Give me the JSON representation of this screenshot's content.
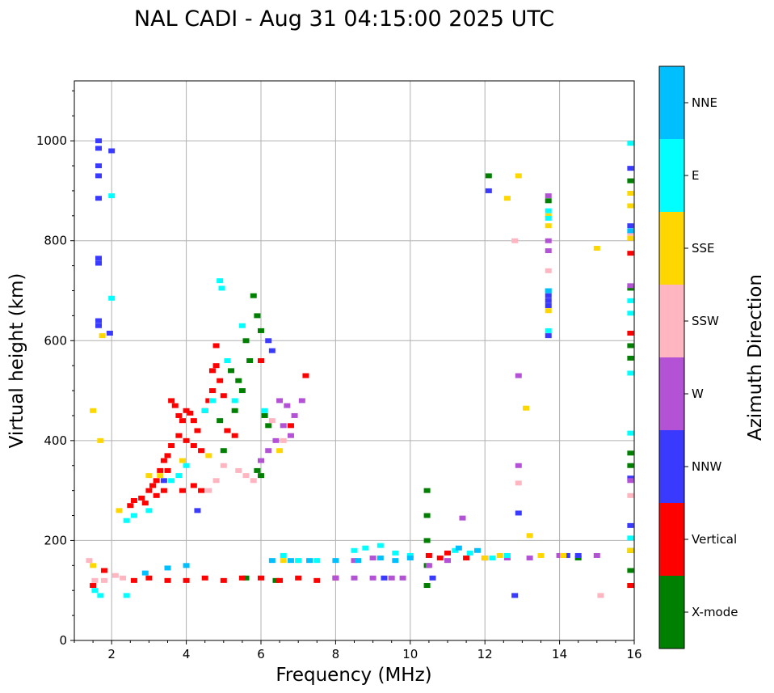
{
  "chart_data": {
    "type": "scatter",
    "title": "NAL CADI - Aug 31 04:15:00 2025 UTC",
    "xlabel": "Frequency (MHz)",
    "ylabel": "Virtual height (km)",
    "xlim": [
      1,
      16
    ],
    "ylim": [
      0,
      1120
    ],
    "xticks": [
      "2",
      "4",
      "6",
      "8",
      "10",
      "12",
      "14",
      "16"
    ],
    "yticks": [
      "0",
      "200",
      "400",
      "600",
      "800",
      "1000"
    ],
    "grid": true,
    "colorbar": {
      "label": "Azimuth Direction",
      "categories": [
        {
          "name": "X-mode",
          "color": "#008000"
        },
        {
          "name": "Vertical",
          "color": "#ff0000"
        },
        {
          "name": "NNW",
          "color": "#3a3aff"
        },
        {
          "name": "W",
          "color": "#b452d6"
        },
        {
          "name": "SSW",
          "color": "#ffb6c1"
        },
        {
          "name": "SSE",
          "color": "#ffd700"
        },
        {
          "name": "E",
          "color": "#00ffff"
        },
        {
          "name": "NNE",
          "color": "#00bfff"
        }
      ]
    },
    "series": [
      {
        "name": "X-mode",
        "points": [
          [
            5.2,
            540
          ],
          [
            5.4,
            520
          ],
          [
            5.6,
            600
          ],
          [
            5.8,
            690
          ],
          [
            5.9,
            650
          ],
          [
            6.0,
            620
          ],
          [
            5.7,
            560
          ],
          [
            5.5,
            500
          ],
          [
            5.3,
            460
          ],
          [
            5.1,
            420
          ],
          [
            4.9,
            440
          ],
          [
            5.0,
            380
          ],
          [
            6.1,
            450
          ],
          [
            6.2,
            430
          ],
          [
            5.9,
            340
          ],
          [
            6.0,
            330
          ],
          [
            10.45,
            300
          ],
          [
            10.45,
            250
          ],
          [
            10.45,
            200
          ],
          [
            10.45,
            150
          ],
          [
            10.45,
            110
          ],
          [
            14.5,
            165
          ],
          [
            15.9,
            375
          ],
          [
            15.9,
            350
          ],
          [
            15.9,
            180
          ],
          [
            15.9,
            140
          ],
          [
            15.9,
            110
          ],
          [
            15.9,
            565
          ],
          [
            15.9,
            590
          ],
          [
            15.9,
            705
          ],
          [
            15.9,
            920
          ],
          [
            5.6,
            125
          ],
          [
            6.4,
            120
          ],
          [
            12.1,
            930
          ],
          [
            13.7,
            880
          ]
        ]
      },
      {
        "name": "Vertical",
        "points": [
          [
            2.5,
            270
          ],
          [
            2.6,
            280
          ],
          [
            2.8,
            285
          ],
          [
            3.0,
            300
          ],
          [
            3.2,
            320
          ],
          [
            3.3,
            340
          ],
          [
            3.4,
            360
          ],
          [
            3.5,
            370
          ],
          [
            3.6,
            390
          ],
          [
            3.6,
            480
          ],
          [
            3.7,
            470
          ],
          [
            3.8,
            450
          ],
          [
            3.9,
            440
          ],
          [
            4.0,
            460
          ],
          [
            4.1,
            455
          ],
          [
            4.2,
            440
          ],
          [
            4.0,
            400
          ],
          [
            3.8,
            410
          ],
          [
            4.2,
            390
          ],
          [
            4.4,
            380
          ],
          [
            4.3,
            420
          ],
          [
            4.5,
            460
          ],
          [
            4.6,
            480
          ],
          [
            4.7,
            540
          ],
          [
            4.8,
            550
          ],
          [
            4.9,
            520
          ],
          [
            4.7,
            500
          ],
          [
            5.0,
            490
          ],
          [
            4.4,
            300
          ],
          [
            4.2,
            310
          ],
          [
            3.9,
            300
          ],
          [
            3.5,
            340
          ],
          [
            3.4,
            300
          ],
          [
            3.2,
            290
          ],
          [
            2.9,
            275
          ],
          [
            3.1,
            310
          ],
          [
            4.8,
            590
          ],
          [
            5.1,
            420
          ],
          [
            5.3,
            410
          ],
          [
            6.0,
            560
          ],
          [
            7.2,
            530
          ],
          [
            6.8,
            430
          ],
          [
            2.6,
            120
          ],
          [
            3.0,
            125
          ],
          [
            3.5,
            120
          ],
          [
            4.0,
            120
          ],
          [
            4.5,
            125
          ],
          [
            5.0,
            120
          ],
          [
            5.5,
            125
          ],
          [
            6.0,
            125
          ],
          [
            6.5,
            120
          ],
          [
            7.0,
            125
          ],
          [
            7.5,
            120
          ],
          [
            8.0,
            125
          ],
          [
            10.5,
            170
          ],
          [
            10.8,
            165
          ],
          [
            11.0,
            175
          ],
          [
            11.5,
            165
          ],
          [
            12.0,
            165
          ],
          [
            15.9,
            775
          ],
          [
            15.9,
            615
          ],
          [
            15.9,
            110
          ],
          [
            1.5,
            110
          ],
          [
            1.8,
            140
          ]
        ]
      },
      {
        "name": "NNW",
        "points": [
          [
            1.65,
            1000
          ],
          [
            1.65,
            985
          ],
          [
            1.65,
            950
          ],
          [
            1.65,
            930
          ],
          [
            1.65,
            885
          ],
          [
            1.65,
            765
          ],
          [
            1.65,
            755
          ],
          [
            1.65,
            640
          ],
          [
            1.65,
            630
          ],
          [
            1.95,
            615
          ],
          [
            13.7,
            690
          ],
          [
            13.7,
            680
          ],
          [
            13.7,
            670
          ],
          [
            13.7,
            610
          ],
          [
            12.1,
            900
          ],
          [
            12.8,
            90
          ],
          [
            12.9,
            255
          ],
          [
            14.5,
            170
          ],
          [
            14.2,
            170
          ],
          [
            10.6,
            125
          ],
          [
            9.3,
            125
          ],
          [
            15.9,
            945
          ],
          [
            15.9,
            830
          ],
          [
            15.9,
            325
          ],
          [
            15.9,
            230
          ],
          [
            6.3,
            580
          ],
          [
            6.2,
            600
          ],
          [
            2.0,
            980
          ],
          [
            3.4,
            320
          ],
          [
            4.3,
            260
          ]
        ]
      },
      {
        "name": "W",
        "points": [
          [
            8.0,
            125
          ],
          [
            8.5,
            125
          ],
          [
            9.0,
            125
          ],
          [
            9.5,
            125
          ],
          [
            9.8,
            125
          ],
          [
            8.5,
            160
          ],
          [
            9.0,
            165
          ],
          [
            10.5,
            150
          ],
          [
            11.0,
            160
          ],
          [
            12.0,
            165
          ],
          [
            12.6,
            165
          ],
          [
            13.2,
            165
          ],
          [
            13.7,
            890
          ],
          [
            13.7,
            800
          ],
          [
            13.7,
            780
          ],
          [
            12.9,
            530
          ],
          [
            12.9,
            350
          ],
          [
            15.9,
            710
          ],
          [
            15.9,
            320
          ],
          [
            6.5,
            480
          ],
          [
            6.7,
            470
          ],
          [
            6.9,
            450
          ],
          [
            7.1,
            480
          ],
          [
            6.6,
            430
          ],
          [
            6.8,
            410
          ],
          [
            6.4,
            400
          ],
          [
            6.2,
            380
          ],
          [
            6.0,
            360
          ],
          [
            11.4,
            245
          ],
          [
            14.0,
            170
          ],
          [
            15.0,
            170
          ]
        ]
      },
      {
        "name": "SSW",
        "points": [
          [
            1.4,
            160
          ],
          [
            1.55,
            120
          ],
          [
            1.8,
            120
          ],
          [
            2.1,
            130
          ],
          [
            2.3,
            125
          ],
          [
            5.4,
            340
          ],
          [
            5.6,
            330
          ],
          [
            5.8,
            320
          ],
          [
            5.0,
            350
          ],
          [
            4.8,
            320
          ],
          [
            4.6,
            300
          ],
          [
            12.9,
            315
          ],
          [
            12.8,
            800
          ],
          [
            13.7,
            740
          ],
          [
            15.9,
            815
          ],
          [
            15.9,
            290
          ],
          [
            15.1,
            90
          ],
          [
            6.3,
            440
          ],
          [
            6.6,
            400
          ]
        ]
      },
      {
        "name": "SSE",
        "points": [
          [
            1.5,
            460
          ],
          [
            1.7,
            400
          ],
          [
            1.75,
            610
          ],
          [
            1.5,
            150
          ],
          [
            2.2,
            260
          ],
          [
            3.0,
            330
          ],
          [
            3.3,
            330
          ],
          [
            3.9,
            360
          ],
          [
            4.6,
            370
          ],
          [
            6.5,
            380
          ],
          [
            6.6,
            160
          ],
          [
            7.0,
            160
          ],
          [
            12.0,
            165
          ],
          [
            12.4,
            170
          ],
          [
            12.6,
            885
          ],
          [
            12.9,
            930
          ],
          [
            13.1,
            465
          ],
          [
            13.2,
            210
          ],
          [
            13.5,
            170
          ],
          [
            13.7,
            830
          ],
          [
            13.7,
            850
          ],
          [
            13.7,
            660
          ],
          [
            14.1,
            170
          ],
          [
            15.0,
            785
          ],
          [
            15.9,
            895
          ],
          [
            15.9,
            870
          ],
          [
            15.9,
            805
          ],
          [
            15.9,
            180
          ]
        ]
      },
      {
        "name": "E",
        "points": [
          [
            1.55,
            100
          ],
          [
            1.7,
            90
          ],
          [
            2.4,
            90
          ],
          [
            2.0,
            890
          ],
          [
            2.0,
            685
          ],
          [
            4.9,
            720
          ],
          [
            4.95,
            705
          ],
          [
            5.5,
            630
          ],
          [
            5.1,
            560
          ],
          [
            4.7,
            480
          ],
          [
            4.5,
            460
          ],
          [
            4.0,
            350
          ],
          [
            3.8,
            330
          ],
          [
            3.6,
            320
          ],
          [
            3.0,
            260
          ],
          [
            2.6,
            250
          ],
          [
            2.4,
            240
          ],
          [
            6.6,
            170
          ],
          [
            7.0,
            160
          ],
          [
            7.5,
            160
          ],
          [
            8.5,
            180
          ],
          [
            8.8,
            185
          ],
          [
            9.2,
            190
          ],
          [
            9.6,
            175
          ],
          [
            10.0,
            170
          ],
          [
            12.2,
            165
          ],
          [
            12.6,
            170
          ],
          [
            13.7,
            860
          ],
          [
            13.7,
            845
          ],
          [
            13.7,
            700
          ],
          [
            13.7,
            620
          ],
          [
            15.9,
            995
          ],
          [
            15.9,
            680
          ],
          [
            15.9,
            655
          ],
          [
            15.9,
            535
          ],
          [
            15.9,
            415
          ],
          [
            15.9,
            205
          ],
          [
            11.2,
            180
          ],
          [
            11.6,
            175
          ],
          [
            6.1,
            460
          ],
          [
            5.3,
            480
          ]
        ]
      },
      {
        "name": "NNE",
        "points": [
          [
            6.3,
            160
          ],
          [
            6.8,
            160
          ],
          [
            7.3,
            160
          ],
          [
            8.0,
            160
          ],
          [
            8.6,
            160
          ],
          [
            9.2,
            165
          ],
          [
            9.6,
            160
          ],
          [
            10.0,
            165
          ],
          [
            11.3,
            185
          ],
          [
            11.8,
            180
          ],
          [
            13.7,
            700
          ],
          [
            15.9,
            820
          ],
          [
            4.0,
            150
          ],
          [
            3.5,
            145
          ],
          [
            2.9,
            135
          ]
        ]
      }
    ]
  }
}
